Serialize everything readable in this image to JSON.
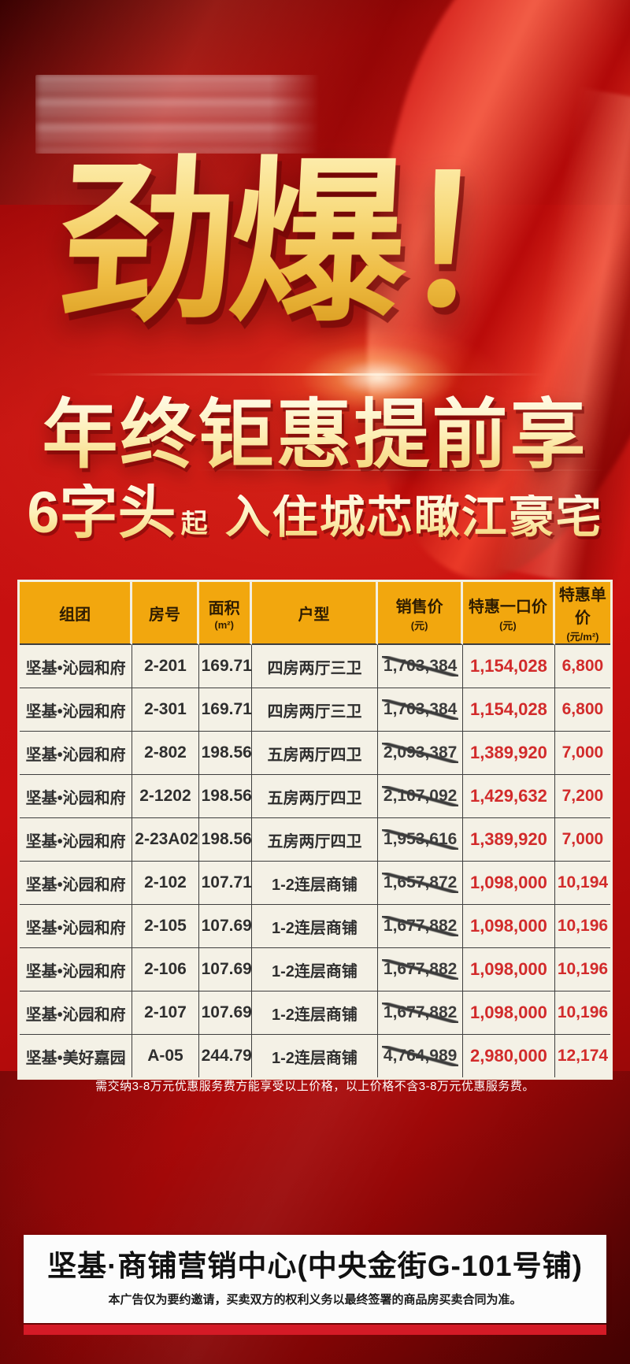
{
  "poster": {
    "headline": "劲爆！",
    "subheadline": "年终钜惠提前享",
    "tagline": {
      "big": "6字头",
      "small": "起",
      "rest": "入住城芯瞰江豪宅"
    },
    "note": "需交纳3-8万元优惠服务费方能享受以上价格，以上价格不含3-8万元优惠服务费。"
  },
  "table": {
    "headers": [
      {
        "label": "组团",
        "unit": ""
      },
      {
        "label": "房号",
        "unit": ""
      },
      {
        "label": "面积",
        "unit": "(m²)"
      },
      {
        "label": "户型",
        "unit": ""
      },
      {
        "label": "销售价",
        "unit": "(元)"
      },
      {
        "label": "特惠一口价",
        "unit": "(元)"
      },
      {
        "label": "特惠单价",
        "unit": "(元/m²)"
      }
    ],
    "rows": [
      {
        "group": "坚基•沁园和府",
        "room": "2-201",
        "area": "169.71",
        "layout": "四房两厅三卫",
        "list_price": "1,703,384",
        "deal_price": "1,154,028",
        "unit_price": "6,800"
      },
      {
        "group": "坚基•沁园和府",
        "room": "2-301",
        "area": "169.71",
        "layout": "四房两厅三卫",
        "list_price": "1,703,384",
        "deal_price": "1,154,028",
        "unit_price": "6,800"
      },
      {
        "group": "坚基•沁园和府",
        "room": "2-802",
        "area": "198.56",
        "layout": "五房两厅四卫",
        "list_price": "2,093,387",
        "deal_price": "1,389,920",
        "unit_price": "7,000"
      },
      {
        "group": "坚基•沁园和府",
        "room": "2-1202",
        "area": "198.56",
        "layout": "五房两厅四卫",
        "list_price": "2,107,092",
        "deal_price": "1,429,632",
        "unit_price": "7,200"
      },
      {
        "group": "坚基•沁园和府",
        "room": "2-23A02",
        "area": "198.56",
        "layout": "五房两厅四卫",
        "list_price": "1,953,616",
        "deal_price": "1,389,920",
        "unit_price": "7,000"
      },
      {
        "group": "坚基•沁园和府",
        "room": "2-102",
        "area": "107.71",
        "layout": "1-2连层商铺",
        "list_price": "1,657,872",
        "deal_price": "1,098,000",
        "unit_price": "10,194"
      },
      {
        "group": "坚基•沁园和府",
        "room": "2-105",
        "area": "107.69",
        "layout": "1-2连层商铺",
        "list_price": "1,677,882",
        "deal_price": "1,098,000",
        "unit_price": "10,196"
      },
      {
        "group": "坚基•沁园和府",
        "room": "2-106",
        "area": "107.69",
        "layout": "1-2连层商铺",
        "list_price": "1,677,882",
        "deal_price": "1,098,000",
        "unit_price": "10,196"
      },
      {
        "group": "坚基•沁园和府",
        "room": "2-107",
        "area": "107.69",
        "layout": "1-2连层商铺",
        "list_price": "1,677,882",
        "deal_price": "1,098,000",
        "unit_price": "10,196"
      },
      {
        "group": "坚基•美好嘉园",
        "room": "A-05",
        "area": "244.79",
        "layout": "1-2连层商铺",
        "list_price": "4,764,989",
        "deal_price": "2,980,000",
        "unit_price": "12,174"
      }
    ]
  },
  "footer": {
    "banner_title": "坚基·商铺营销中心(中央金街G-101号铺)",
    "disclaimer": "本广告仅为要约邀请，买卖双方的权利义务以最终签署的商品房买卖合同为准。"
  },
  "colors": {
    "poster_red": "#c51111",
    "table_header_gold": "#f2a70e",
    "price_red": "#d22b2b",
    "cell_cream": "#f4f1e6"
  }
}
